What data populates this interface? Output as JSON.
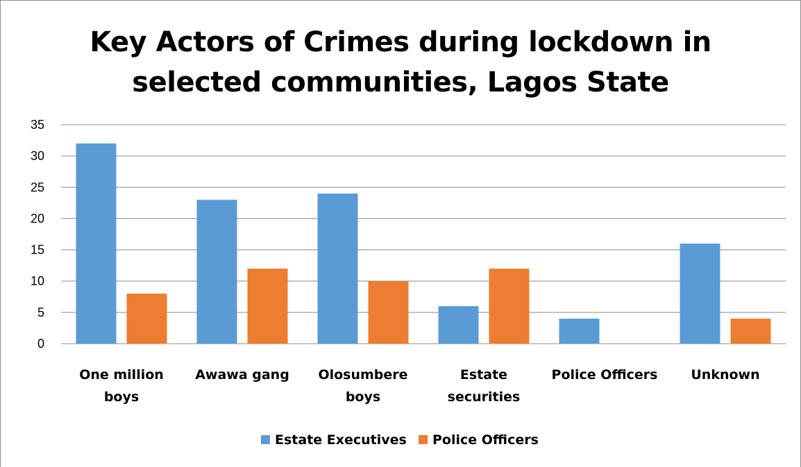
{
  "chart_data": {
    "type": "bar",
    "title_lines": [
      "Key Actors of Crimes during lockdown in",
      "selected communities, Lagos State"
    ],
    "categories": [
      [
        "One million",
        "boys"
      ],
      [
        "Awawa gang"
      ],
      [
        "Olosumbere",
        "boys"
      ],
      [
        "Estate",
        "securities"
      ],
      [
        "Police Officers"
      ],
      [
        "Unknown"
      ]
    ],
    "series": [
      {
        "name": "Estate Executives",
        "color": "#5b9bd5",
        "values": [
          32,
          23,
          24,
          6,
          4,
          16
        ]
      },
      {
        "name": "Police Officers",
        "color": "#ed7d31",
        "values": [
          8,
          12,
          10,
          12,
          0,
          4
        ]
      }
    ],
    "yticks": [
      0,
      5,
      10,
      15,
      20,
      25,
      30,
      35
    ],
    "ylim": [
      0,
      35
    ],
    "grid": true,
    "legend_position": "bottom"
  }
}
